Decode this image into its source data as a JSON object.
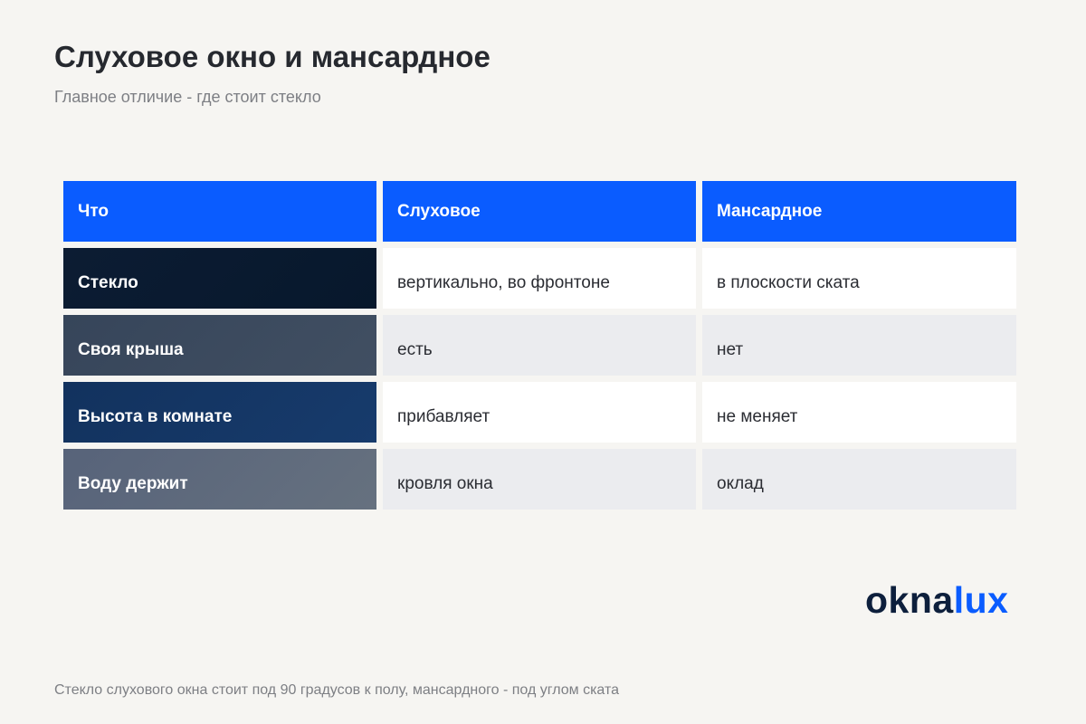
{
  "header": {
    "title": "Слуховое окно и мансардное",
    "subtitle": "Главное отличие - где стоит стекло"
  },
  "table": {
    "columns": [
      "Что",
      "Слуховое",
      "Мансардное"
    ],
    "rows": [
      {
        "label": "Стекло",
        "dormer": "вертикально, во фронтоне",
        "roof": "в плоскости ската"
      },
      {
        "label": "Своя крыша",
        "dormer": "есть",
        "roof": "нет"
      },
      {
        "label": "Высота в комнате",
        "dormer": "прибавляет",
        "roof": "не меняет"
      },
      {
        "label": "Воду держит",
        "dormer": "кровля окна",
        "roof": "оклад"
      }
    ]
  },
  "logo": {
    "part1": "okna",
    "part2": "lux"
  },
  "footer": {
    "note": "Стекло слухового окна стоит под 90 градусов к полу, мансардного - под углом ската"
  },
  "colors": {
    "header_bg": "#0a5cff",
    "label_row_1": "#0c1c33",
    "label_row_2": "#3b4a5e",
    "label_row_3": "#15386a",
    "label_row_4": "#5e6a7a",
    "value_row_odd": "#ffffff",
    "value_row_even": "#ebecef",
    "logo_dark": "#0d1f3c",
    "logo_accent": "#0a5cff"
  }
}
